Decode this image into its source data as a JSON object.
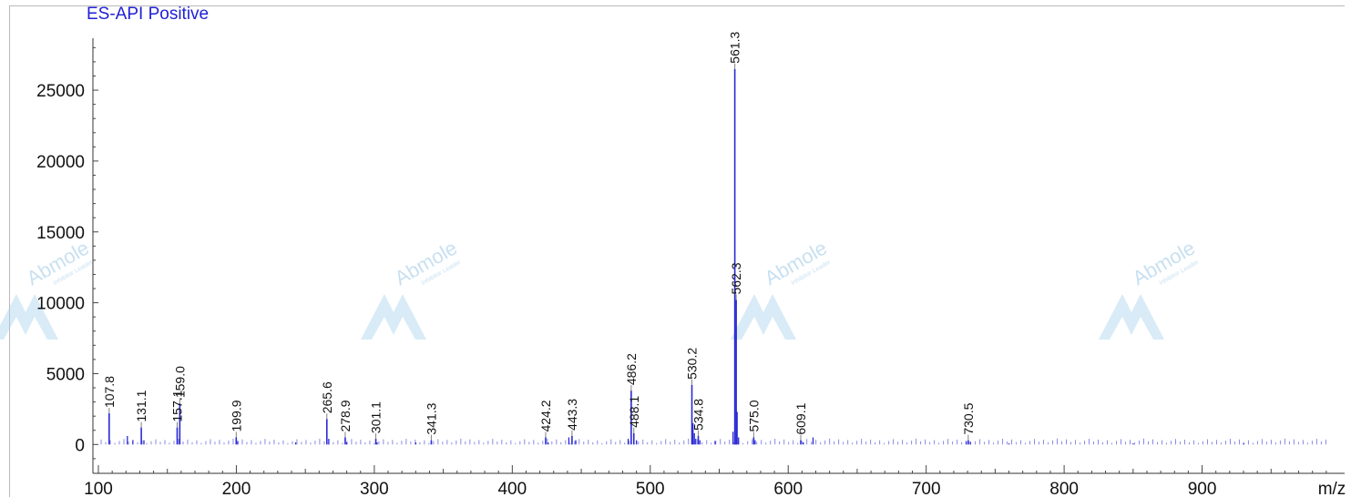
{
  "chart_data": {
    "type": "bar",
    "title": "ES-API Positive",
    "xlabel": "m/z",
    "ylabel": "",
    "xlim": [
      100,
      1000
    ],
    "ylim": [
      -1200,
      28600
    ],
    "x_ticks": [
      100,
      200,
      300,
      400,
      500,
      600,
      700,
      800,
      900
    ],
    "y_ticks": [
      0,
      5000,
      10000,
      15000,
      20000,
      25000
    ],
    "grid": false,
    "legend": "none",
    "peaks": [
      {
        "x": 107.8,
        "y": 2200,
        "label": "107.8"
      },
      {
        "x": 131.1,
        "y": 1200,
        "label": "131.1"
      },
      {
        "x": 157.1,
        "y": 1200,
        "label": "157.1"
      },
      {
        "x": 159.0,
        "y": 2900,
        "label": "159.0"
      },
      {
        "x": 199.9,
        "y": 500,
        "label": "199.9"
      },
      {
        "x": 265.6,
        "y": 1800,
        "label": "265.6"
      },
      {
        "x": 278.9,
        "y": 500,
        "label": "278.9"
      },
      {
        "x": 301.1,
        "y": 400,
        "label": "301.1"
      },
      {
        "x": 341.3,
        "y": 300,
        "label": "341.3"
      },
      {
        "x": 424.2,
        "y": 500,
        "label": "424.2"
      },
      {
        "x": 443.3,
        "y": 600,
        "label": "443.3"
      },
      {
        "x": 486.2,
        "y": 3800,
        "label": "486.2"
      },
      {
        "x": 488.1,
        "y": 800,
        "label": "488.1"
      },
      {
        "x": 530.2,
        "y": 4200,
        "label": "530.2"
      },
      {
        "x": 534.8,
        "y": 600,
        "label": "534.8"
      },
      {
        "x": 561.3,
        "y": 26500,
        "label": "561.3"
      },
      {
        "x": 562.3,
        "y": 10200,
        "label": "562.3"
      },
      {
        "x": 575.0,
        "y": 500,
        "label": "575.0"
      },
      {
        "x": 609.1,
        "y": 300,
        "label": "609.1"
      },
      {
        "x": 730.5,
        "y": 300,
        "label": "730.5"
      }
    ],
    "minor_peaks": [
      {
        "x": 121,
        "y": 600
      },
      {
        "x": 125,
        "y": 300
      },
      {
        "x": 133,
        "y": 300
      },
      {
        "x": 201,
        "y": 250
      },
      {
        "x": 243,
        "y": 150
      },
      {
        "x": 267,
        "y": 400
      },
      {
        "x": 280,
        "y": 150
      },
      {
        "x": 302,
        "y": 150
      },
      {
        "x": 330,
        "y": 150
      },
      {
        "x": 426,
        "y": 150
      },
      {
        "x": 441,
        "y": 500
      },
      {
        "x": 446,
        "y": 300
      },
      {
        "x": 484,
        "y": 400
      },
      {
        "x": 490,
        "y": 300
      },
      {
        "x": 531,
        "y": 1500
      },
      {
        "x": 532,
        "y": 800
      },
      {
        "x": 533,
        "y": 400
      },
      {
        "x": 536,
        "y": 300
      },
      {
        "x": 547,
        "y": 250
      },
      {
        "x": 560,
        "y": 900
      },
      {
        "x": 563,
        "y": 2300
      },
      {
        "x": 564,
        "y": 500
      },
      {
        "x": 576,
        "y": 300
      },
      {
        "x": 611,
        "y": 150
      },
      {
        "x": 618,
        "y": 500
      },
      {
        "x": 729,
        "y": 200
      },
      {
        "x": 732,
        "y": 200
      },
      {
        "x": 760,
        "y": 80
      },
      {
        "x": 850,
        "y": 80
      },
      {
        "x": 930,
        "y": 80
      }
    ],
    "series_color": "#2a2ad4",
    "label_line_color": "#808080"
  },
  "watermarks": [
    {
      "text": "Abmole",
      "sub": "Inhibitor Leader"
    },
    {
      "text": "Abmole",
      "sub": "Inhibitor Leader"
    },
    {
      "text": "Abmole",
      "sub": "Inhibitor Leader"
    },
    {
      "text": "Abmole",
      "sub": "Inhibitor Leader"
    }
  ]
}
